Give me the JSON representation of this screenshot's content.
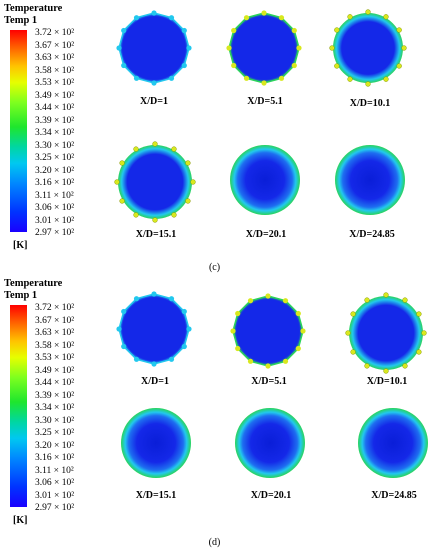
{
  "panels": [
    {
      "legend_title": "Temperature",
      "legend_subtitle": "Temp 1",
      "ticks": [
        "3.72 × 10²",
        "3.67 × 10²",
        "3.63 × 10²",
        "3.58 × 10²",
        "3.53 × 10²",
        "3.49 × 10²",
        "3.44 × 10²",
        "3.39 × 10²",
        "3.34 × 10²",
        "3.30 × 10²",
        "3.25 × 10²",
        "3.20 × 10²",
        "3.16 × 10²",
        "3.11 × 10²",
        "3.06 × 10²",
        "3.01 × 10²",
        "2.97 × 10²"
      ],
      "unit": "[K]",
      "sections": [
        "X/D=1",
        "X/D=5.1",
        "X/D=10.1",
        "X/D=15.1",
        "X/D=20.1",
        "X/D=24.85"
      ],
      "caption": "(c)"
    },
    {
      "legend_title": "Temperature",
      "legend_subtitle": "Temp 1",
      "ticks": [
        "3.72 × 10²",
        "3.67 × 10²",
        "3.63 × 10²",
        "3.58 × 10²",
        "3.53 × 10²",
        "3.49 × 10²",
        "3.44 × 10²",
        "3.39 × 10²",
        "3.34 × 10²",
        "3.30 × 10²",
        "3.25 × 10²",
        "3.20 × 10²",
        "3.16 × 10²",
        "3.11 × 10²",
        "3.06 × 10²",
        "3.01 × 10²",
        "2.97 × 10²"
      ],
      "unit": "[K]",
      "sections": [
        "X/D=1",
        "X/D=5.1",
        "X/D=10.1",
        "X/D=15.1",
        "X/D=20.1",
        "X/D=24.85"
      ],
      "caption": "(d)"
    }
  ],
  "colors": {
    "core": "#1428e8",
    "edge_cyan": "#22c8ee",
    "edge_green": "#2ad45a",
    "edge_yellow": "#d8e81e"
  }
}
